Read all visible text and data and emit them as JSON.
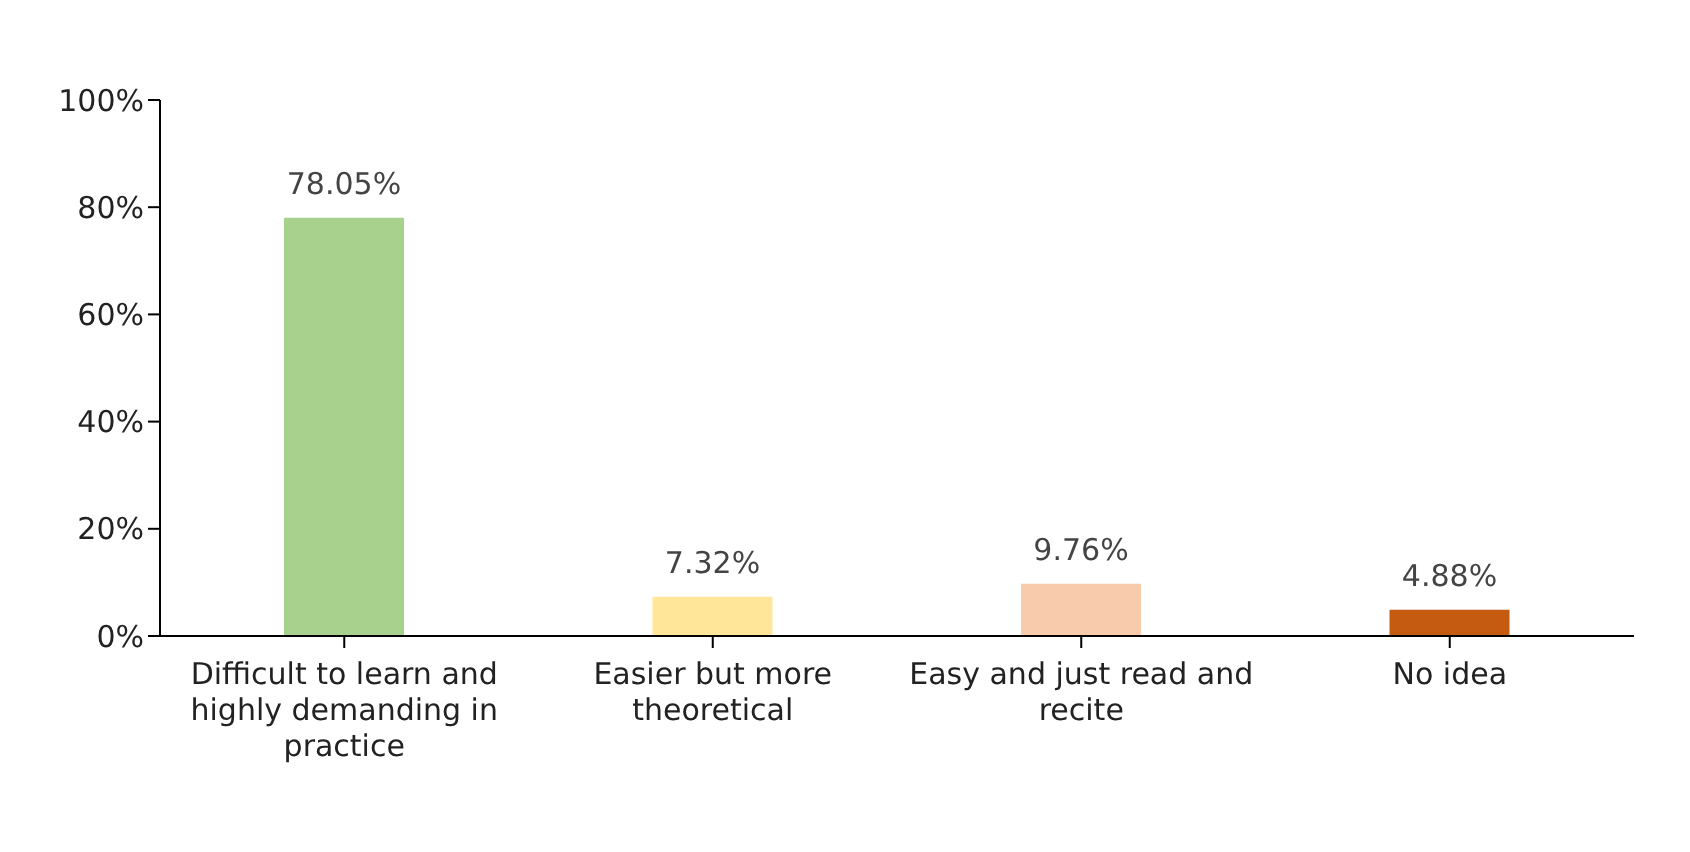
{
  "chart_data": {
    "type": "bar",
    "categories": [
      "Difficult to learn and highly demanding in practice",
      "Easier but more theoretical",
      "Easy and just read and recite",
      "No idea"
    ],
    "values": [
      78.05,
      7.32,
      9.76,
      4.88
    ],
    "colors": [
      "#a9d18e",
      "#ffe699",
      "#f8cbad",
      "#c55a11"
    ],
    "value_labels": [
      "78.05%",
      "7.32%",
      "9.76%",
      "4.88%"
    ],
    "ylim": [
      0,
      100
    ],
    "yticks": [
      {
        "value": 0,
        "label": "0%"
      },
      {
        "value": 20,
        "label": "20%"
      },
      {
        "value": 40,
        "label": "40%"
      },
      {
        "value": 60,
        "label": "60%"
      },
      {
        "value": 80,
        "label": "80%"
      },
      {
        "value": 100,
        "label": "100%"
      }
    ],
    "grid": false,
    "legend": false
  }
}
